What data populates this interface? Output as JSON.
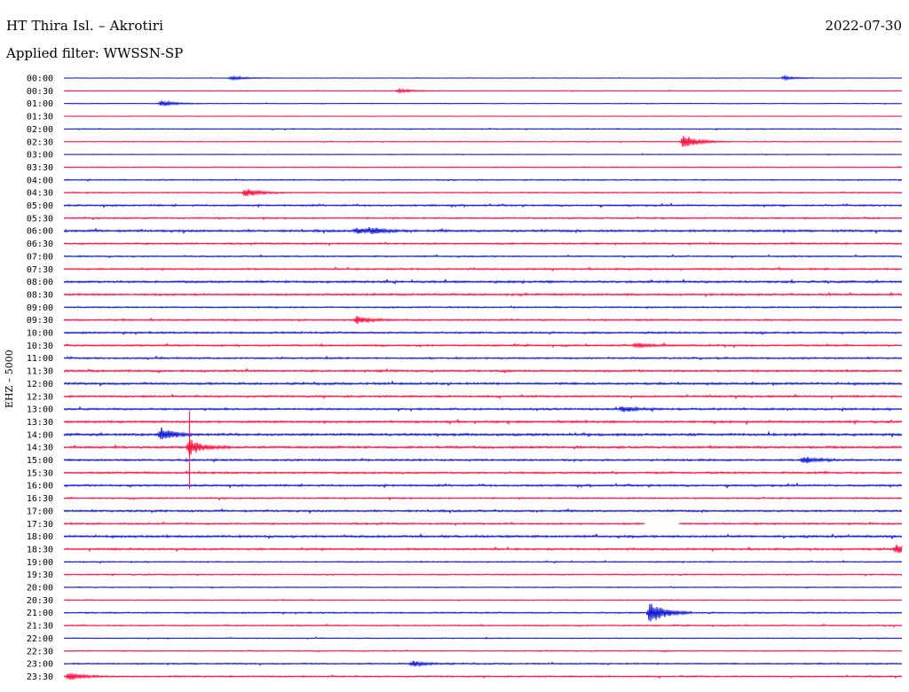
{
  "header": {
    "title": "HT Thira Isl. – Akrotiri",
    "date": "2022-07-30",
    "filter": "Applied filter: WWSSN-SP"
  },
  "colors": {
    "trace_a": "#0a14d2",
    "trace_b": "#ff0a3c",
    "background": "#ffffff",
    "text": "#000000"
  },
  "chart_data": {
    "type": "line",
    "ylabel": "EHZ – 5000",
    "x": [],
    "y_ticks": [
      "00:00",
      "00:30",
      "01:00",
      "01:30",
      "02:00",
      "02:30",
      "03:00",
      "03:30",
      "04:00",
      "04:30",
      "05:00",
      "05:30",
      "06:00",
      "06:30",
      "07:00",
      "07:30",
      "08:00",
      "08:30",
      "09:00",
      "09:30",
      "10:00",
      "10:30",
      "11:00",
      "11:30",
      "12:00",
      "12:30",
      "13:00",
      "13:30",
      "14:00",
      "14:30",
      "15:00",
      "15:30",
      "16:00",
      "16:30",
      "17:00",
      "17:30",
      "18:00",
      "18:30",
      "19:00",
      "19:30",
      "20:00",
      "20:30",
      "21:00",
      "21:30",
      "22:00",
      "22:30",
      "23:00",
      "23:30"
    ],
    "grid": false,
    "legend": "none",
    "noise_levels": [
      0.2,
      0.3,
      0.3,
      0.2,
      0.4,
      0.3,
      0.3,
      0.4,
      0.5,
      0.5,
      0.7,
      0.6,
      0.9,
      0.7,
      0.6,
      0.7,
      0.9,
      0.8,
      0.6,
      0.7,
      0.8,
      0.7,
      0.7,
      0.8,
      0.9,
      0.8,
      0.8,
      0.9,
      1.0,
      0.9,
      0.8,
      0.8,
      0.8,
      0.6,
      0.8,
      0.7,
      0.9,
      0.8,
      0.5,
      0.5,
      0.4,
      0.4,
      0.6,
      0.5,
      0.4,
      0.4,
      0.6,
      0.6
    ],
    "events": [
      {
        "trace": "00:00",
        "minute": 6.0,
        "amplitude": 2
      },
      {
        "trace": "00:00",
        "minute": 25.8,
        "amplitude": 2
      },
      {
        "trace": "00:30",
        "minute": 12.0,
        "amplitude": 2
      },
      {
        "trace": "01:00",
        "minute": 3.5,
        "amplitude": 3
      },
      {
        "trace": "02:30",
        "minute": 22.2,
        "amplitude": 8
      },
      {
        "trace": "04:30",
        "minute": 6.5,
        "amplitude": 5
      },
      {
        "trace": "06:00",
        "minute": 10.5,
        "amplitude": 3
      },
      {
        "trace": "06:00",
        "minute": 11.0,
        "amplitude": 3
      },
      {
        "trace": "09:30",
        "minute": 10.5,
        "amplitude": 4
      },
      {
        "trace": "10:30",
        "minute": 20.5,
        "amplitude": 3
      },
      {
        "trace": "13:00",
        "minute": 20.0,
        "amplitude": 3
      },
      {
        "trace": "14:00",
        "minute": 3.5,
        "amplitude": 7
      },
      {
        "trace": "14:30",
        "minute": 4.5,
        "amplitude": 9
      },
      {
        "trace": "15:00",
        "minute": 26.5,
        "amplitude": 4
      },
      {
        "trace": "18:30",
        "minute": 29.8,
        "amplitude": 5
      },
      {
        "trace": "21:00",
        "minute": 21.0,
        "amplitude": 14
      },
      {
        "trace": "23:00",
        "minute": 12.5,
        "amplitude": 3
      },
      {
        "trace": "23:30",
        "minute": 0.2,
        "amplitude": 4
      }
    ],
    "data_gaps": [
      {
        "trace": "17:30",
        "start_minute": 20.8,
        "end_minute": 22.0
      }
    ]
  }
}
